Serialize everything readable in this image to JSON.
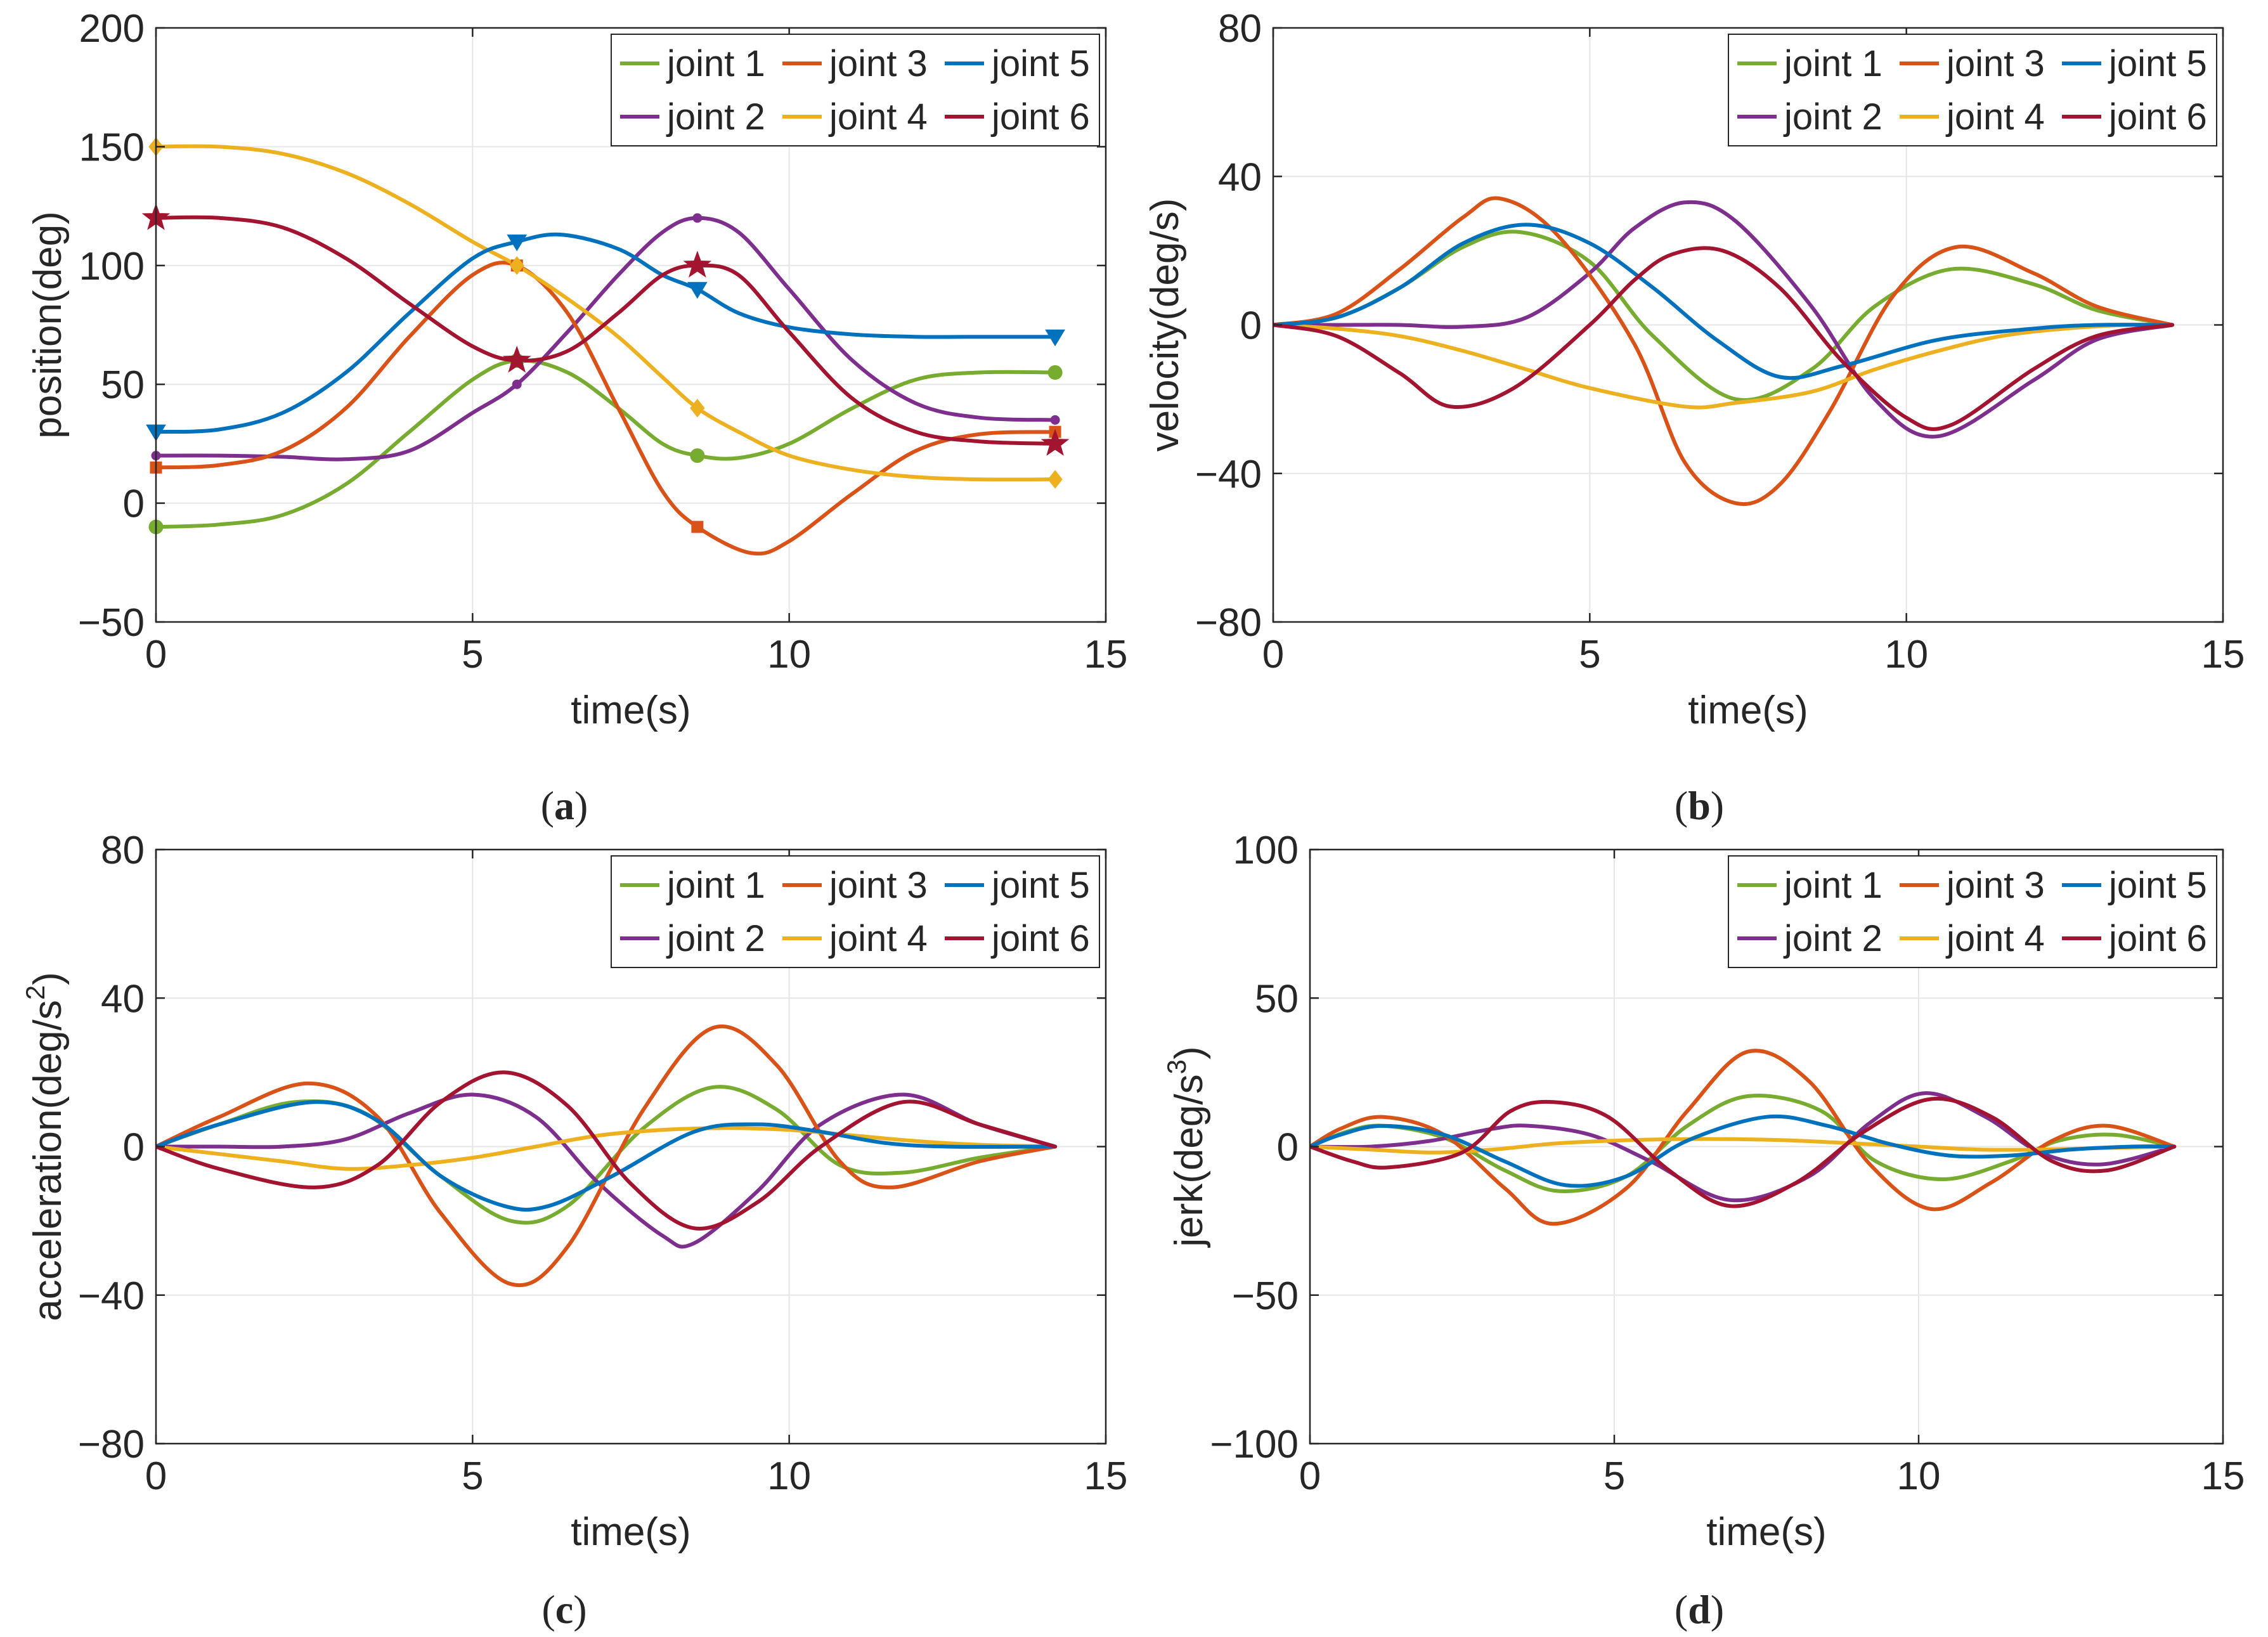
{
  "colors": {
    "joint 1": "#77AC30",
    "joint 2": "#7E2F8E",
    "joint 3": "#D95319",
    "joint 4": "#EDB120",
    "joint 5": "#0072BD",
    "joint 6": "#A2142F"
  },
  "chart_data": [
    {
      "id": "a",
      "type": "line",
      "caption": "(a)",
      "caption_letter": "a",
      "xlabel": "time(s)",
      "ylabel": "position(deg)",
      "xlim": [
        0,
        15
      ],
      "ylim": [
        -50,
        200
      ],
      "xticks": [
        0,
        5,
        10,
        15
      ],
      "yticks": [
        -50,
        0,
        50,
        100,
        150,
        200
      ],
      "xtick_labels": [
        "0",
        "5",
        "10",
        "15"
      ],
      "ytick_labels": [
        "−50",
        "0",
        "50",
        "100",
        "150",
        "200"
      ],
      "grid": true,
      "legend": "top-right",
      "series": [
        {
          "name": "joint 1",
          "marker": "circle",
          "x": [
            0,
            1,
            2,
            3,
            4,
            5,
            5.7,
            6.5,
            7.3,
            8.0,
            8.55,
            9.2,
            10,
            11,
            12,
            13,
            14.2
          ],
          "y": [
            -10,
            -9,
            -5,
            8,
            30,
            52,
            60,
            55,
            40,
            25,
            20,
            19,
            25,
            40,
            52,
            55,
            55
          ],
          "markers_x": [
            0,
            5.7,
            8.55,
            14.2
          ],
          "markers_y": [
            -10,
            60,
            20,
            55
          ]
        },
        {
          "name": "joint 2",
          "marker": "dot",
          "x": [
            0,
            1,
            2,
            3,
            4,
            5,
            5.7,
            6.5,
            7.3,
            8.0,
            8.55,
            9.2,
            10,
            11,
            12,
            13,
            14.2
          ],
          "y": [
            20,
            20,
            19.5,
            18.5,
            22,
            38,
            50,
            72,
            96,
            114,
            120,
            114,
            90,
            60,
            42,
            36,
            35
          ],
          "markers_x": [
            0,
            5.7,
            8.55,
            14.2
          ],
          "markers_y": [
            20,
            50,
            120,
            35
          ]
        },
        {
          "name": "joint 3",
          "marker": "square",
          "x": [
            0,
            1,
            2,
            3,
            4,
            5,
            5.7,
            6.5,
            7.3,
            8.0,
            8.55,
            9.4,
            10,
            11,
            12,
            13,
            14.2
          ],
          "y": [
            15,
            16,
            22,
            40,
            70,
            96,
            100,
            80,
            40,
            5,
            -10,
            -21,
            -16,
            4,
            22,
            29,
            30
          ],
          "markers_x": [
            0,
            5.7,
            8.55,
            14.2
          ],
          "markers_y": [
            15,
            100,
            -10,
            30
          ]
        },
        {
          "name": "joint 4",
          "marker": "diamond",
          "x": [
            0,
            1,
            2,
            3,
            4,
            5,
            5.7,
            6.5,
            7.3,
            8.0,
            8.55,
            9.2,
            10,
            11,
            12,
            13,
            14.2
          ],
          "y": [
            150,
            150,
            147,
            139,
            126,
            110,
            100,
            86,
            70,
            53,
            40,
            30,
            20,
            14,
            11,
            10,
            10
          ],
          "markers_x": [
            0,
            5.7,
            8.55,
            14.2
          ],
          "markers_y": [
            150,
            100,
            40,
            10
          ]
        },
        {
          "name": "joint 5",
          "marker": "triangle",
          "x": [
            0,
            1,
            2,
            3,
            4,
            5,
            5.7,
            6.4,
            7.3,
            8.0,
            8.55,
            9.2,
            10,
            11,
            12,
            13,
            14.2
          ],
          "y": [
            30,
            31,
            38,
            55,
            80,
            103,
            110,
            113,
            107,
            96,
            90,
            80,
            74,
            71,
            70,
            70,
            70
          ],
          "markers_x": [
            0,
            5.7,
            8.55,
            14.2
          ],
          "markers_y": [
            30,
            110,
            90,
            70
          ]
        },
        {
          "name": "joint 6",
          "marker": "star",
          "x": [
            0,
            1,
            2,
            3,
            4,
            5,
            5.7,
            6.5,
            7.3,
            8.0,
            8.55,
            9.2,
            10,
            11,
            12,
            13,
            14.2
          ],
          "y": [
            120,
            120,
            116,
            103,
            84,
            66,
            60,
            64,
            80,
            96,
            100,
            96,
            72,
            44,
            30,
            26,
            25
          ],
          "markers_x": [
            0,
            5.7,
            8.55,
            14.2
          ],
          "markers_y": [
            120,
            60,
            100,
            25
          ]
        }
      ]
    },
    {
      "id": "b",
      "type": "line",
      "caption": "(b)",
      "caption_letter": "b",
      "xlabel": "time(s)",
      "ylabel": "velocity(deg/s)",
      "xlim": [
        0,
        15
      ],
      "ylim": [
        -80,
        80
      ],
      "xticks": [
        0,
        5,
        10,
        15
      ],
      "yticks": [
        -80,
        -40,
        0,
        40,
        80
      ],
      "xtick_labels": [
        "0",
        "5",
        "10",
        "15"
      ],
      "ytick_labels": [
        "−80",
        "−40",
        "0",
        "40",
        "80"
      ],
      "grid": true,
      "legend": "top-right",
      "series": [
        {
          "name": "joint 1",
          "x": [
            0,
            1,
            2,
            3,
            3.9,
            5,
            6,
            7.3,
            8.5,
            9.5,
            10.7,
            12,
            13,
            14.2
          ],
          "y": [
            0,
            2,
            10,
            21,
            25,
            17,
            -3,
            -20,
            -12,
            5,
            15,
            11,
            4,
            0
          ]
        },
        {
          "name": "joint 2",
          "x": [
            0,
            1,
            2,
            3,
            4,
            5,
            5.7,
            6.5,
            7.3,
            8.5,
            9.5,
            10.5,
            12,
            13,
            14.2
          ],
          "y": [
            0,
            0,
            0,
            -0.5,
            2,
            14,
            26,
            33,
            28,
            5,
            -20,
            -30,
            -15,
            -4,
            0
          ]
        },
        {
          "name": "joint 3",
          "x": [
            0,
            1,
            2,
            3,
            3.6,
            4.5,
            5.7,
            6.5,
            7.3,
            8.0,
            8.8,
            9.8,
            10.8,
            12,
            13,
            14.2
          ],
          "y": [
            0,
            3,
            15,
            29,
            34,
            24,
            -5,
            -37,
            -48,
            -43,
            -23,
            8,
            21,
            14,
            5,
            0
          ]
        },
        {
          "name": "joint 4",
          "x": [
            0,
            1,
            2,
            3,
            4,
            5,
            6.5,
            7.3,
            8.5,
            9.5,
            10.5,
            11.5,
            12.5,
            13.5,
            14.2
          ],
          "y": [
            0,
            -1,
            -3,
            -7,
            -12,
            -17,
            -22,
            -21,
            -18,
            -12,
            -7,
            -3,
            -1,
            0,
            0
          ]
        },
        {
          "name": "joint 5",
          "x": [
            0,
            1,
            2,
            3,
            4,
            5,
            6,
            7,
            8,
            9,
            10.5,
            12,
            13,
            14.2
          ],
          "y": [
            0,
            2,
            10,
            22,
            27,
            22,
            10,
            -4,
            -14,
            -11,
            -4,
            -1,
            0,
            0
          ]
        },
        {
          "name": "joint 6",
          "x": [
            0,
            1,
            2,
            2.8,
            3.8,
            5,
            5.7,
            6.3,
            7.1,
            8,
            9,
            10,
            10.7,
            12,
            13,
            14.2
          ],
          "y": [
            0,
            -3,
            -13,
            -22,
            -17,
            0,
            12,
            19,
            20,
            10,
            -10,
            -25,
            -27,
            -12,
            -3,
            0
          ]
        }
      ]
    },
    {
      "id": "c",
      "type": "line",
      "caption": "(c)",
      "caption_letter": "c",
      "xlabel": "time(s)",
      "ylabel": "acceleration(deg/s",
      "ylabel_sup": "2",
      "ylabel_tail": ")",
      "xlim": [
        0,
        15
      ],
      "ylim": [
        -80,
        80
      ],
      "xticks": [
        0,
        5,
        10,
        15
      ],
      "yticks": [
        -80,
        -40,
        0,
        40,
        80
      ],
      "xtick_labels": [
        "0",
        "5",
        "10",
        "15"
      ],
      "ytick_labels": [
        "−80",
        "−40",
        "0",
        "40",
        "80"
      ],
      "grid": true,
      "legend": "top-right",
      "series": [
        {
          "name": "joint 1",
          "x": [
            0,
            1,
            2.2,
            3.3,
            4.5,
            5.6,
            6.5,
            7.7,
            8.8,
            9.8,
            10.8,
            11.8,
            13,
            14.2
          ],
          "y": [
            0,
            6,
            12,
            9,
            -8,
            -20,
            -16,
            5,
            16,
            10,
            -5,
            -7,
            -3,
            0
          ]
        },
        {
          "name": "joint 2",
          "x": [
            0,
            1,
            2,
            3,
            4,
            5,
            6,
            7,
            8,
            8.5,
            9.5,
            10.5,
            11.8,
            13,
            14.2
          ],
          "y": [
            0,
            0,
            0,
            2,
            9,
            14,
            8,
            -10,
            -24,
            -26,
            -12,
            6,
            14,
            6,
            0
          ]
        },
        {
          "name": "joint 3",
          "x": [
            0,
            1,
            2.4,
            3.5,
            4.5,
            5.6,
            6.5,
            7.7,
            8.8,
            9.8,
            10.8,
            11.6,
            13,
            14.2
          ],
          "y": [
            0,
            8,
            17,
            8,
            -18,
            -37,
            -27,
            10,
            32,
            22,
            -4,
            -11,
            -4,
            0
          ]
        },
        {
          "name": "joint 4",
          "x": [
            0,
            1,
            2,
            3,
            4,
            5,
            6,
            7,
            8,
            9,
            10,
            11,
            12,
            13,
            14.2
          ],
          "y": [
            0,
            -2,
            -4,
            -6,
            -5,
            -3,
            0,
            3,
            4.5,
            5,
            4.5,
            3,
            1.5,
            0.5,
            0
          ]
        },
        {
          "name": "joint 5",
          "x": [
            0,
            1,
            2.5,
            3.5,
            4.5,
            5.5,
            6.2,
            7.2,
            8.5,
            9.5,
            10.5,
            11.5,
            12.5,
            14.2
          ],
          "y": [
            0,
            6,
            12,
            7,
            -8,
            -16,
            -16,
            -8,
            4,
            6,
            4,
            1,
            0,
            0
          ]
        },
        {
          "name": "joint 6",
          "x": [
            0,
            1,
            2.5,
            3.5,
            4.5,
            5.5,
            6.5,
            7.5,
            8.5,
            9.5,
            10.5,
            11.8,
            13,
            14.2
          ],
          "y": [
            0,
            -6,
            -11,
            -5,
            12,
            20,
            11,
            -10,
            -22,
            -15,
            0,
            12,
            6,
            0
          ]
        }
      ]
    },
    {
      "id": "d",
      "type": "line",
      "caption": "(d)",
      "caption_letter": "d",
      "xlabel": "time(s)",
      "ylabel": "jerk(deg/s",
      "ylabel_sup": "3",
      "ylabel_tail": ")",
      "xlim": [
        0,
        15
      ],
      "ylim": [
        -100,
        100
      ],
      "xticks": [
        0,
        5,
        10,
        15
      ],
      "yticks": [
        -100,
        -50,
        0,
        50,
        100
      ],
      "xtick_labels": [
        "0",
        "5",
        "10",
        "15"
      ],
      "ytick_labels": [
        "−100",
        "−50",
        "0",
        "50",
        "100"
      ],
      "grid": true,
      "legend": "top-right",
      "series": [
        {
          "name": "joint 1",
          "x": [
            0,
            0.6,
            1.2,
            2.2,
            3.2,
            4.1,
            5.2,
            6.2,
            7.2,
            8.4,
            9.3,
            10.4,
            11.5,
            12.3,
            13.2,
            14.2
          ],
          "y": [
            0,
            5,
            7,
            3,
            -8,
            -15,
            -10,
            7,
            17,
            12,
            -5,
            -11,
            -5,
            2,
            4,
            0
          ]
        },
        {
          "name": "joint 2",
          "x": [
            0,
            1,
            2,
            3,
            3.6,
            4.6,
            5.6,
            6.9,
            8.2,
            9.2,
            10.1,
            11.1,
            12,
            13,
            14.2
          ],
          "y": [
            0,
            0,
            2,
            6,
            7,
            4,
            -5,
            -18,
            -10,
            8,
            18,
            10,
            -2,
            -6,
            0
          ]
        },
        {
          "name": "joint 3",
          "x": [
            0,
            0.5,
            1.2,
            2.2,
            3.2,
            4.0,
            5.2,
            6.2,
            7.2,
            8.2,
            9.2,
            10.2,
            11.2,
            12.2,
            13.1,
            14.2
          ],
          "y": [
            0,
            6,
            10,
            4,
            -14,
            -26,
            -14,
            12,
            32,
            22,
            -6,
            -21,
            -12,
            2,
            7,
            0
          ]
        },
        {
          "name": "joint 4",
          "x": [
            0,
            1,
            2,
            3,
            4,
            5,
            6,
            7,
            8,
            9,
            10,
            11,
            12,
            13,
            14.2
          ],
          "y": [
            0,
            -1,
            -2,
            -1,
            1,
            2,
            2.5,
            2.5,
            2,
            1,
            0,
            -1,
            -1,
            -0.5,
            0
          ]
        },
        {
          "name": "joint 5",
          "x": [
            0,
            0.5,
            1.2,
            2.2,
            3.2,
            4.2,
            5.2,
            6.2,
            7.5,
            8.5,
            9.5,
            10.5,
            11.5,
            12.5,
            13.5,
            14.2
          ],
          "y": [
            0,
            4,
            7,
            4,
            -5,
            -13,
            -10,
            2,
            10,
            7,
            1,
            -3,
            -3,
            -1,
            0,
            0
          ]
        },
        {
          "name": "joint 6",
          "x": [
            0,
            0.7,
            1.3,
            2.5,
            3.3,
            4.0,
            4.9,
            5.9,
            6.9,
            8.0,
            9.1,
            10.2,
            11.2,
            12.2,
            13.1,
            14.2
          ],
          "y": [
            0,
            -5,
            -7,
            -2,
            12,
            15,
            10,
            -8,
            -20,
            -12,
            5,
            16,
            10,
            -5,
            -8,
            0
          ]
        }
      ]
    }
  ]
}
